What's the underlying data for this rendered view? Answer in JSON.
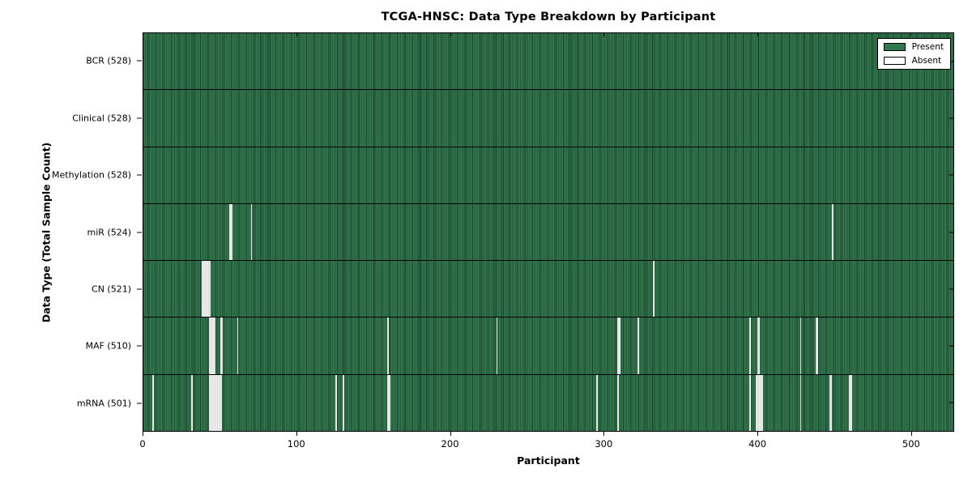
{
  "chart_data": {
    "type": "heatmap",
    "title": "TCGA-HNSC: Data Type Breakdown by Participant",
    "xlabel": "Participant",
    "ylabel": "Data Type (Total Sample Count)",
    "x_max": 528,
    "x_ticks": [
      0,
      100,
      200,
      300,
      400,
      500
    ],
    "x_tick_labels": [
      "0",
      "100",
      "200",
      "300",
      "400",
      "500"
    ],
    "grid": false,
    "legend_position": "upper right",
    "colors": {
      "present": "#2e7a4e",
      "absent": "#ffffff",
      "absent_fill": "#ededed"
    },
    "legend": [
      {
        "label": "Present",
        "color": "#2e7a4e"
      },
      {
        "label": "Absent",
        "color": "#ffffff"
      }
    ],
    "rows": [
      {
        "label": "BCR",
        "present_count": 528,
        "display": "BCR (528)",
        "absent": []
      },
      {
        "label": "Clinical",
        "present_count": 528,
        "display": "Clinical (528)",
        "absent": []
      },
      {
        "label": "Methylation",
        "present_count": 528,
        "display": "Methylation (528)",
        "absent": []
      },
      {
        "label": "miR",
        "present_count": 524,
        "display": "miR (524)",
        "absent": [
          56,
          57,
          70,
          449
        ]
      },
      {
        "label": "CN",
        "present_count": 521,
        "display": "CN (521)",
        "absent": [
          38,
          39,
          40,
          41,
          42,
          43,
          332
        ]
      },
      {
        "label": "MAF",
        "present_count": 510,
        "display": "MAF (510)",
        "absent": [
          43,
          44,
          45,
          46,
          50,
          51,
          61,
          159,
          230,
          309,
          310,
          322,
          395,
          400,
          401,
          428,
          438,
          439
        ]
      },
      {
        "label": "mRNA",
        "present_count": 501,
        "display": "mRNA (501)",
        "absent": [
          6,
          31,
          43,
          44,
          45,
          46,
          47,
          48,
          49,
          50,
          125,
          130,
          159,
          160,
          295,
          309,
          395,
          399,
          400,
          401,
          402,
          403,
          428,
          447,
          448,
          460,
          461
        ]
      }
    ]
  }
}
